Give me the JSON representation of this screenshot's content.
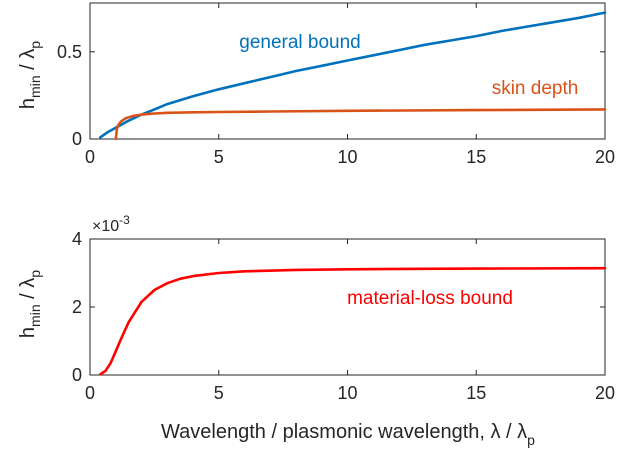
{
  "chart_data": [
    {
      "type": "line",
      "ylabel_main": "h",
      "ylabel_sub": "min",
      "ylabel_mid": " / λ",
      "ylabel_sub2": "p",
      "xlim": [
        0,
        20
      ],
      "ylim": [
        0,
        0.78
      ],
      "xticks": [
        0,
        5,
        10,
        15,
        20
      ],
      "yticks": [
        0,
        0.5
      ],
      "ytick_labels": [
        "0",
        "0.5"
      ],
      "grid": false,
      "series": [
        {
          "name": "general bound",
          "color": "#0072BD",
          "x": [
            0.4,
            0.7,
            1,
            1.5,
            2,
            2.5,
            3,
            4,
            5,
            6,
            7,
            8,
            9,
            10,
            11,
            12,
            13,
            14,
            15,
            16,
            17,
            18,
            19,
            20
          ],
          "y": [
            0.01,
            0.04,
            0.065,
            0.105,
            0.14,
            0.17,
            0.2,
            0.245,
            0.285,
            0.32,
            0.355,
            0.39,
            0.42,
            0.45,
            0.48,
            0.51,
            0.54,
            0.565,
            0.59,
            0.62,
            0.645,
            0.67,
            0.695,
            0.725
          ]
        },
        {
          "name": "skin depth",
          "color": "#D95319",
          "x": [
            1.0,
            1.05,
            1.1,
            1.2,
            1.4,
            1.7,
            2,
            2.5,
            3,
            4,
            5,
            7,
            10,
            15,
            20
          ],
          "y": [
            0.0,
            0.06,
            0.08,
            0.1,
            0.12,
            0.133,
            0.14,
            0.146,
            0.15,
            0.153,
            0.155,
            0.158,
            0.162,
            0.166,
            0.17
          ]
        }
      ]
    },
    {
      "type": "line",
      "ylabel_main": "h",
      "ylabel_sub": "min",
      "ylabel_mid": " / λ",
      "ylabel_sub2": "p",
      "xlabel_main": "Wavelength / plasmonic wavelength, λ / λ",
      "xlabel_sub": "p",
      "exponent_label": "×10",
      "exponent_sup": "-3",
      "xlim": [
        0,
        20
      ],
      "ylim": [
        0,
        4
      ],
      "xticks": [
        0,
        5,
        10,
        15,
        20
      ],
      "yticks": [
        0,
        2,
        4
      ],
      "grid": false,
      "series": [
        {
          "name": "material-loss bound",
          "color": "#FF0000",
          "x": [
            0.4,
            0.6,
            0.8,
            1,
            1.2,
            1.5,
            2,
            2.5,
            3,
            3.5,
            4,
            5,
            6,
            8,
            10,
            12,
            15,
            20
          ],
          "y": [
            0.02,
            0.12,
            0.35,
            0.7,
            1.05,
            1.55,
            2.15,
            2.5,
            2.7,
            2.83,
            2.91,
            3.0,
            3.05,
            3.09,
            3.11,
            3.12,
            3.13,
            3.14
          ]
        }
      ]
    }
  ]
}
